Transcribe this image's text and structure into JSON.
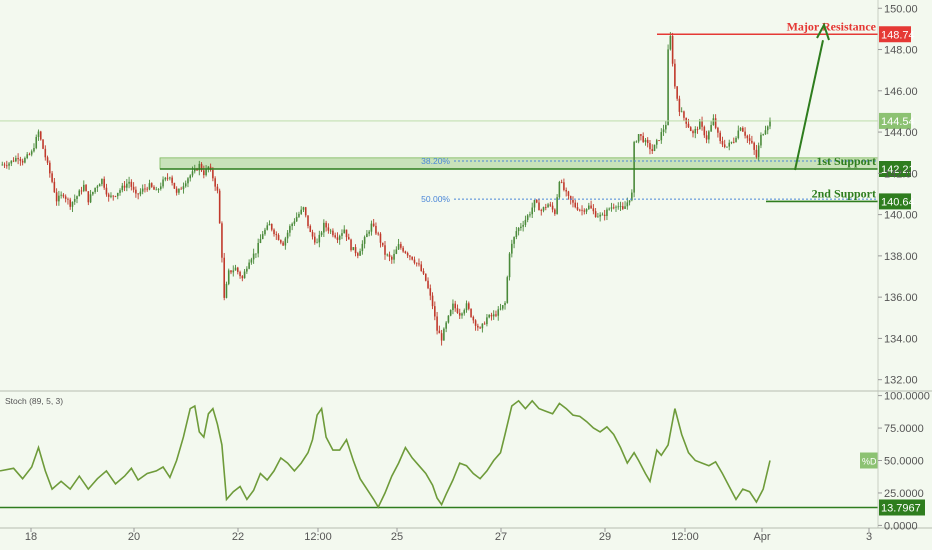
{
  "colors": {
    "background": "#f3f9ef",
    "candle_up": "#4a8a3a",
    "candle_down": "#c0392b",
    "resistance": "#e53935",
    "support": "#2e7d1e",
    "stoch_line": "#6e9b3a",
    "fib_line": "#4a86d8",
    "price_line": "#7cb85a"
  },
  "chart_data": [
    {
      "type": "candlestick",
      "panel": "price",
      "x_tick_labels": [
        "18",
        "20",
        "22",
        "12:00",
        "25",
        "27",
        "29",
        "12:00",
        "Apr",
        "3"
      ],
      "ylim": [
        131.5,
        150.4
      ],
      "y_ticks": [
        132,
        134,
        136,
        138,
        140,
        142,
        144,
        146,
        148,
        150
      ],
      "y_tick_labels": [
        "132.00",
        "134.00",
        "136.00",
        "138.00",
        "140.00",
        "142.00",
        "144.00",
        "146.00",
        "148.00",
        "150.00"
      ],
      "last_price": 144.54,
      "last_price_label": "144.54",
      "close_path": [
        [
          0,
          142.4
        ],
        [
          4,
          142.5
        ],
        [
          8,
          142.8
        ],
        [
          10,
          142.6
        ],
        [
          14,
          143.0
        ],
        [
          17,
          144.0
        ],
        [
          20,
          142.8
        ],
        [
          23,
          141.6
        ],
        [
          25,
          140.7
        ],
        [
          28,
          141.0
        ],
        [
          31,
          140.5
        ],
        [
          34,
          140.9
        ],
        [
          37,
          141.4
        ],
        [
          39,
          140.7
        ],
        [
          42,
          141.3
        ],
        [
          45,
          141.7
        ],
        [
          48,
          140.8
        ],
        [
          51,
          141.0
        ],
        [
          54,
          141.3
        ],
        [
          57,
          141.6
        ],
        [
          60,
          140.9
        ],
        [
          63,
          141.2
        ],
        [
          66,
          141.4
        ],
        [
          69,
          141.1
        ],
        [
          72,
          141.6
        ],
        [
          75,
          141.9
        ],
        [
          78,
          141.0
        ],
        [
          80,
          141.3
        ],
        [
          83,
          141.8
        ],
        [
          86,
          142.1
        ],
        [
          88,
          142.4
        ],
        [
          90,
          142.0
        ],
        [
          92,
          142.3
        ],
        [
          94,
          141.8
        ],
        [
          96,
          141.1
        ],
        [
          98,
          138.0
        ],
        [
          99,
          135.9
        ],
        [
          101,
          137.2
        ],
        [
          104,
          137.4
        ],
        [
          107,
          136.9
        ],
        [
          110,
          137.8
        ],
        [
          113,
          138.2
        ],
        [
          116,
          139.1
        ],
        [
          119,
          139.5
        ],
        [
          122,
          139.0
        ],
        [
          125,
          138.6
        ],
        [
          128,
          139.4
        ],
        [
          131,
          139.9
        ],
        [
          134,
          140.3
        ],
        [
          137,
          139.1
        ],
        [
          140,
          138.6
        ],
        [
          143,
          139.5
        ],
        [
          146,
          139.2
        ],
        [
          149,
          138.9
        ],
        [
          152,
          139.3
        ],
        [
          155,
          138.4
        ],
        [
          158,
          138.1
        ],
        [
          161,
          138.8
        ],
        [
          164,
          139.5
        ],
        [
          167,
          139.0
        ],
        [
          170,
          138.1
        ],
        [
          173,
          137.8
        ],
        [
          176,
          138.5
        ],
        [
          179,
          138.2
        ],
        [
          182,
          137.9
        ],
        [
          185,
          137.5
        ],
        [
          188,
          136.8
        ],
        [
          191,
          135.6
        ],
        [
          193,
          134.4
        ],
        [
          195,
          134.0
        ],
        [
          197,
          134.7
        ],
        [
          200,
          135.6
        ],
        [
          203,
          135.2
        ],
        [
          206,
          135.6
        ],
        [
          209,
          134.9
        ],
        [
          212,
          134.4
        ],
        [
          215,
          135.0
        ],
        [
          218,
          135.1
        ],
        [
          221,
          135.4
        ],
        [
          223,
          135.7
        ],
        [
          225,
          138.2
        ],
        [
          228,
          139.2
        ],
        [
          231,
          139.6
        ],
        [
          234,
          140.1
        ],
        [
          236,
          140.6
        ],
        [
          239,
          140.2
        ],
        [
          242,
          140.5
        ],
        [
          245,
          140.1
        ],
        [
          247,
          141.7
        ],
        [
          249,
          141.2
        ],
        [
          251,
          140.8
        ],
        [
          254,
          140.4
        ],
        [
          257,
          140.2
        ],
        [
          260,
          140.4
        ],
        [
          263,
          140.0
        ],
        [
          266,
          139.9
        ],
        [
          269,
          140.3
        ],
        [
          272,
          140.5
        ],
        [
          275,
          140.2
        ],
        [
          277,
          140.6
        ],
        [
          279,
          141.0
        ],
        [
          280,
          143.4
        ],
        [
          282,
          143.9
        ],
        [
          285,
          143.5
        ],
        [
          288,
          143.1
        ],
        [
          291,
          143.7
        ],
        [
          294,
          144.4
        ],
        [
          295,
          147.9
        ],
        [
          296,
          148.6
        ],
        [
          298,
          146.2
        ],
        [
          300,
          145.1
        ],
        [
          303,
          144.5
        ],
        [
          306,
          143.9
        ],
        [
          309,
          144.4
        ],
        [
          312,
          143.7
        ],
        [
          315,
          144.6
        ],
        [
          318,
          143.5
        ],
        [
          321,
          143.3
        ],
        [
          324,
          143.6
        ],
        [
          327,
          144.3
        ],
        [
          330,
          143.7
        ],
        [
          332,
          143.4
        ],
        [
          334,
          142.8
        ],
        [
          336,
          143.8
        ],
        [
          338,
          144.2
        ],
        [
          340,
          144.54
        ]
      ],
      "annotations": {
        "resistance": {
          "price": 148.74,
          "label": "Major Resistance",
          "badge": "148.74"
        },
        "support_1": {
          "price": 142.21,
          "label": "1st Support",
          "badge": "142.21"
        },
        "support_2": {
          "price": 140.64,
          "label": "2nd Support",
          "badge": "140.64"
        },
        "fib_1": {
          "price": 142.6,
          "label": "38.20%"
        },
        "fib_2": {
          "price": 140.75,
          "label": "50.00%"
        }
      }
    },
    {
      "type": "line",
      "panel": "indicator",
      "name": "Stoch (89, 5, 3)",
      "ylim": [
        -2,
        102
      ],
      "y_ticks": [
        0,
        25,
        50,
        75,
        100
      ],
      "y_tick_labels": [
        "0.0000",
        "25.0000",
        "50.0000",
        "75.0000",
        "100.0000"
      ],
      "level_line": 13.7967,
      "level_label": "13.7967",
      "series_badge": "%D",
      "values": [
        [
          0,
          42
        ],
        [
          6,
          44
        ],
        [
          10,
          36
        ],
        [
          14,
          45
        ],
        [
          17,
          60
        ],
        [
          20,
          42
        ],
        [
          23,
          28
        ],
        [
          27,
          34
        ],
        [
          31,
          28
        ],
        [
          35,
          38
        ],
        [
          39,
          28
        ],
        [
          43,
          36
        ],
        [
          47,
          42
        ],
        [
          51,
          32
        ],
        [
          55,
          38
        ],
        [
          58,
          44
        ],
        [
          61,
          35
        ],
        [
          65,
          40
        ],
        [
          69,
          42
        ],
        [
          72,
          45
        ],
        [
          75,
          37
        ],
        [
          78,
          50
        ],
        [
          81,
          68
        ],
        [
          84,
          90
        ],
        [
          86,
          92
        ],
        [
          88,
          72
        ],
        [
          90,
          68
        ],
        [
          92,
          86
        ],
        [
          94,
          90
        ],
        [
          96,
          78
        ],
        [
          98,
          62
        ],
        [
          100,
          20
        ],
        [
          103,
          26
        ],
        [
          106,
          30
        ],
        [
          109,
          20
        ],
        [
          112,
          27
        ],
        [
          115,
          40
        ],
        [
          118,
          35
        ],
        [
          121,
          42
        ],
        [
          124,
          52
        ],
        [
          127,
          48
        ],
        [
          130,
          42
        ],
        [
          133,
          48
        ],
        [
          136,
          56
        ],
        [
          138,
          66
        ],
        [
          140,
          85
        ],
        [
          142,
          90
        ],
        [
          144,
          68
        ],
        [
          147,
          58
        ],
        [
          150,
          58
        ],
        [
          153,
          66
        ],
        [
          156,
          50
        ],
        [
          159,
          36
        ],
        [
          162,
          28
        ],
        [
          165,
          20
        ],
        [
          167,
          14
        ],
        [
          170,
          25
        ],
        [
          173,
          38
        ],
        [
          176,
          48
        ],
        [
          179,
          60
        ],
        [
          182,
          52
        ],
        [
          185,
          46
        ],
        [
          188,
          40
        ],
        [
          191,
          31
        ],
        [
          193,
          21
        ],
        [
          195,
          16
        ],
        [
          197,
          24
        ],
        [
          200,
          35
        ],
        [
          203,
          48
        ],
        [
          206,
          46
        ],
        [
          209,
          40
        ],
        [
          212,
          36
        ],
        [
          215,
          42
        ],
        [
          218,
          50
        ],
        [
          221,
          56
        ],
        [
          223,
          70
        ],
        [
          226,
          92
        ],
        [
          229,
          96
        ],
        [
          232,
          90
        ],
        [
          235,
          96
        ],
        [
          238,
          90
        ],
        [
          241,
          88
        ],
        [
          244,
          86
        ],
        [
          247,
          94
        ],
        [
          250,
          90
        ],
        [
          253,
          85
        ],
        [
          256,
          84
        ],
        [
          259,
          80
        ],
        [
          262,
          75
        ],
        [
          265,
          72
        ],
        [
          268,
          76
        ],
        [
          271,
          70
        ],
        [
          274,
          60
        ],
        [
          277,
          48
        ],
        [
          280,
          56
        ],
        [
          282,
          50
        ],
        [
          285,
          40
        ],
        [
          287,
          34
        ],
        [
          290,
          58
        ],
        [
          292,
          54
        ],
        [
          295,
          62
        ],
        [
          298,
          90
        ],
        [
          301,
          70
        ],
        [
          304,
          56
        ],
        [
          307,
          50
        ],
        [
          310,
          48
        ],
        [
          313,
          46
        ],
        [
          316,
          49
        ],
        [
          319,
          40
        ],
        [
          322,
          30
        ],
        [
          325,
          20
        ],
        [
          328,
          28
        ],
        [
          331,
          26
        ],
        [
          334,
          18
        ],
        [
          337,
          28
        ],
        [
          340,
          50
        ]
      ]
    }
  ]
}
